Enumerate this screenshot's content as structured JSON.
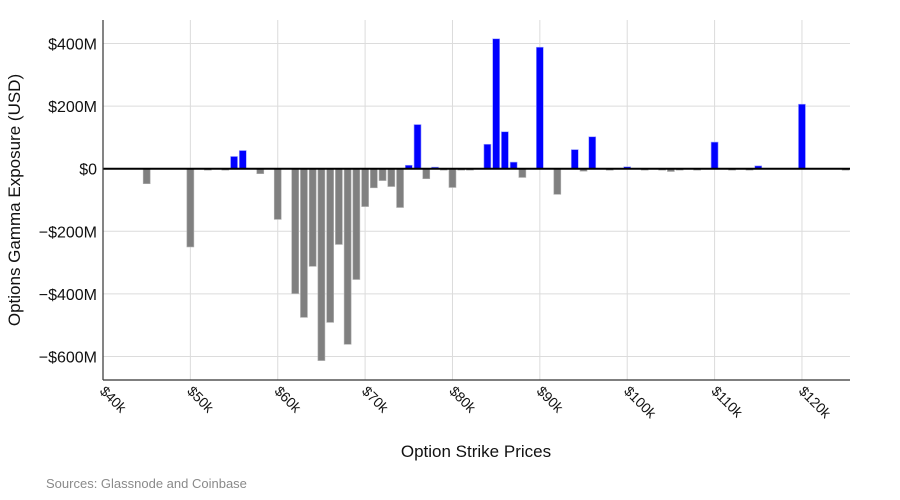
{
  "chart_data": {
    "type": "bar",
    "title": "",
    "xlabel": "Option Strike Prices",
    "ylabel": "Options Gamma Exposure (USD)",
    "xlim": [
      40,
      125.5
    ],
    "ylim": [
      -675,
      475
    ],
    "grid": true,
    "x_unit": "thousand USD",
    "y_unit": "million USD",
    "x_ticks": [
      40,
      50,
      60,
      70,
      80,
      90,
      100,
      110,
      120
    ],
    "x_tick_labels": [
      "$40k",
      "$50k",
      "$60k",
      "$70k",
      "$80k",
      "$90k",
      "$100k",
      "$110k",
      "$120k"
    ],
    "y_ticks": [
      400,
      200,
      0,
      -200,
      -400,
      -600
    ],
    "y_tick_labels": [
      "$400M",
      "$200M",
      "$0",
      "−$200M",
      "−$400M",
      "−$600M"
    ],
    "colors": {
      "positive": "#0000ff",
      "negative": "#808080"
    },
    "x": [
      45,
      50,
      52,
      54,
      55,
      56,
      58,
      60,
      62,
      63,
      64,
      65,
      66,
      67,
      68,
      69,
      70,
      71,
      72,
      73,
      74,
      75,
      76,
      77,
      78,
      79,
      80,
      81,
      82,
      84,
      85,
      86,
      87,
      88,
      90,
      92,
      94,
      95,
      96,
      98,
      100,
      102,
      104,
      105,
      106,
      108,
      110,
      112,
      114,
      115,
      120,
      125
    ],
    "values": [
      -48,
      -250,
      -2,
      -1,
      39,
      58,
      -16,
      -162,
      -399,
      -475,
      -312,
      -613,
      -491,
      -242,
      -561,
      -354,
      -121,
      -61,
      -38,
      -57,
      -124,
      11,
      141,
      -32,
      5,
      -1,
      -60,
      -1,
      -3,
      78,
      415,
      118,
      21,
      -28,
      388,
      -82,
      61,
      -8,
      102,
      -5,
      6,
      -1,
      -1,
      -9,
      -1,
      -1,
      85,
      -1,
      -1,
      9,
      206,
      -5
    ]
  },
  "footer": {
    "sources": "Sources: Glassnode and Coinbase"
  }
}
